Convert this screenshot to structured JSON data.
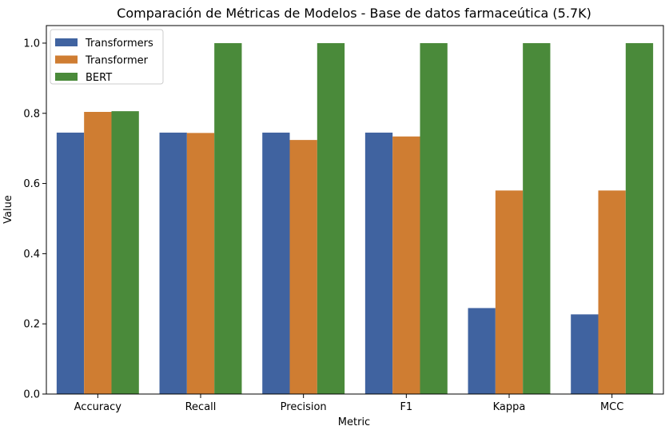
{
  "chart_data": {
    "type": "bar",
    "title": "Comparación de Métricas de Modelos - Base de datos farmaceútica (5.7K)",
    "xlabel": "Metric",
    "ylabel": "Value",
    "categories": [
      "Accuracy",
      "Recall",
      "Precision",
      "F1",
      "Kappa",
      "MCC"
    ],
    "series": [
      {
        "name": "Transformers",
        "color": "#4063a0",
        "values": [
          0.745,
          0.745,
          0.745,
          0.745,
          0.245,
          0.227
        ]
      },
      {
        "name": "Transformer",
        "color": "#cf7d32",
        "values": [
          0.804,
          0.744,
          0.724,
          0.734,
          0.58,
          0.58
        ]
      },
      {
        "name": "BERT",
        "color": "#4a8a3a",
        "values": [
          0.806,
          1.0,
          1.0,
          1.0,
          1.0,
          1.0
        ]
      }
    ],
    "ylim": [
      0,
      1.05
    ],
    "yticks": [
      "0.0",
      "0.2",
      "0.4",
      "0.6",
      "0.8",
      "1.0"
    ],
    "legend_position": "top-left",
    "grid": false
  }
}
